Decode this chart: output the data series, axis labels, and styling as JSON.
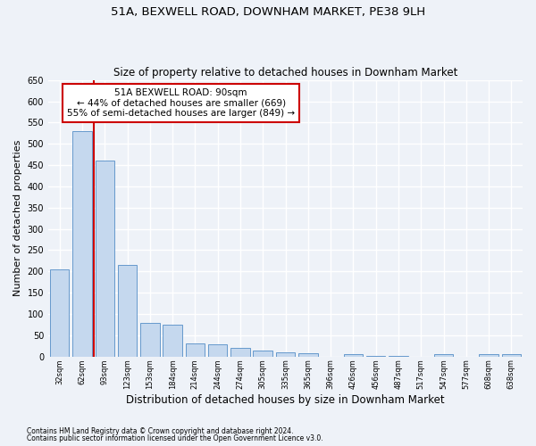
{
  "title1": "51A, BEXWELL ROAD, DOWNHAM MARKET, PE38 9LH",
  "title2": "Size of property relative to detached houses in Downham Market",
  "xlabel": "Distribution of detached houses by size in Downham Market",
  "ylabel": "Number of detached properties",
  "footnote1": "Contains HM Land Registry data © Crown copyright and database right 2024.",
  "footnote2": "Contains public sector information licensed under the Open Government Licence v3.0.",
  "categories": [
    "32sqm",
    "62sqm",
    "93sqm",
    "123sqm",
    "153sqm",
    "184sqm",
    "214sqm",
    "244sqm",
    "274sqm",
    "305sqm",
    "335sqm",
    "365sqm",
    "396sqm",
    "426sqm",
    "456sqm",
    "487sqm",
    "517sqm",
    "547sqm",
    "577sqm",
    "608sqm",
    "638sqm"
  ],
  "values": [
    205,
    530,
    460,
    215,
    80,
    75,
    30,
    28,
    20,
    15,
    10,
    8,
    0,
    5,
    1,
    1,
    0,
    5,
    0,
    5,
    5
  ],
  "bar_color": "#c5d8ee",
  "bar_edge_color": "#6699cc",
  "annotation_text1": "51A BEXWELL ROAD: 90sqm",
  "annotation_text2": "← 44% of detached houses are smaller (669)",
  "annotation_text3": "55% of semi-detached houses are larger (849) →",
  "annotation_box_facecolor": "#ffffff",
  "annotation_border_color": "#cc0000",
  "red_line_color": "#cc0000",
  "ylim_max": 650,
  "yticks": [
    0,
    50,
    100,
    150,
    200,
    250,
    300,
    350,
    400,
    450,
    500,
    550,
    600,
    650
  ],
  "background_color": "#eef2f8",
  "grid_color": "#ffffff",
  "title1_fontsize": 9.5,
  "title2_fontsize": 8.5,
  "xlabel_fontsize": 8.5,
  "ylabel_fontsize": 8,
  "tick_fontsize": 7,
  "annot_fontsize": 7.5
}
